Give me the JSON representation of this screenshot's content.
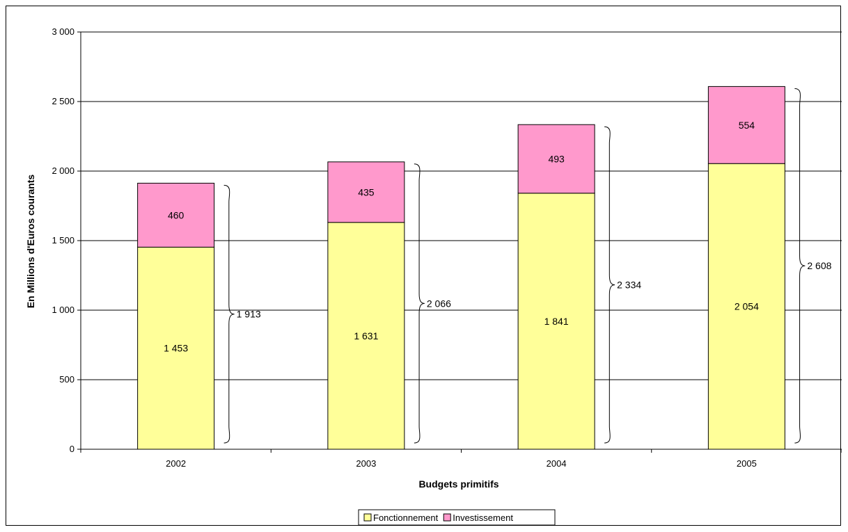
{
  "chart_data": {
    "type": "bar",
    "stacked": true,
    "categories": [
      "2002",
      "2003",
      "2004",
      "2005"
    ],
    "series": [
      {
        "name": "Fonctionnement",
        "values": [
          1453,
          1631,
          1841,
          2054
        ],
        "labels": [
          "1 453",
          "1 631",
          "1 841",
          "2 054"
        ],
        "color": "#FFFF99"
      },
      {
        "name": "Investissement",
        "values": [
          460,
          435,
          493,
          554
        ],
        "labels": [
          "460",
          "435",
          "493",
          "554"
        ],
        "color": "#FF99CC"
      }
    ],
    "totals": {
      "values": [
        1913,
        2066,
        2334,
        2608
      ],
      "labels": [
        "1 913",
        "2 066",
        "2 334",
        "2 608"
      ]
    },
    "xlabel": "Budgets primitifs",
    "ylabel": "En Millions d'Euros courants",
    "ylim": [
      0,
      3000
    ],
    "yticks": [
      0,
      500,
      1000,
      1500,
      2000,
      2500,
      3000
    ],
    "ytick_labels": [
      "0",
      "500",
      "1 000",
      "1 500",
      "2 000",
      "2 500",
      "3 000"
    ],
    "grid": true,
    "legend_position": "bottom"
  }
}
